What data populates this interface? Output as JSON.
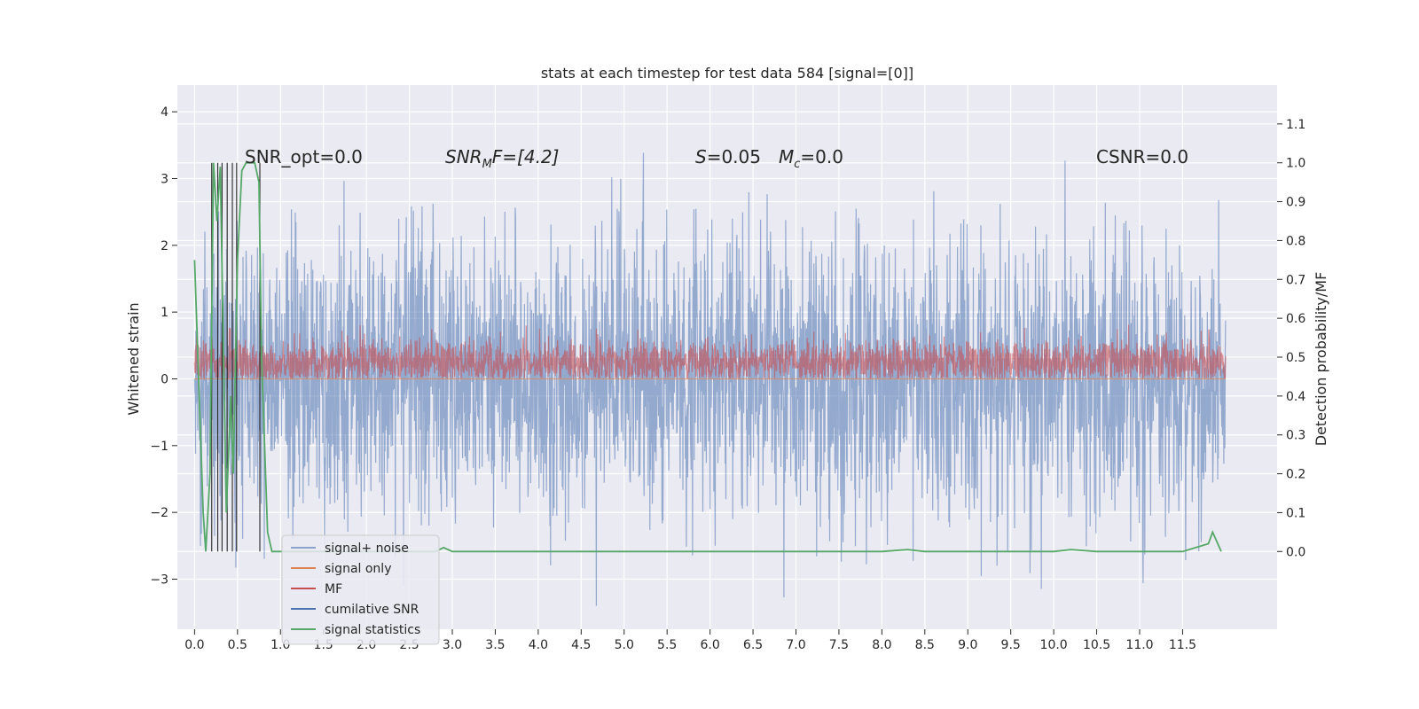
{
  "chart_data": {
    "type": "line",
    "title": "stats at each timestep for test data 584 [signal=[0]]",
    "xlabel": "",
    "ylabel": "Whitened strain",
    "y2label": "Detection probability/MF",
    "xlim": [
      -0.2,
      12.6
    ],
    "ylim": [
      -3.75,
      4.4
    ],
    "y2lim": [
      -0.2,
      1.2
    ],
    "xticks": [
      "0.0",
      "0.5",
      "1.0",
      "1.5",
      "2.0",
      "2.5",
      "3.0",
      "3.5",
      "4.0",
      "4.5",
      "5.0",
      "5.5",
      "6.0",
      "6.5",
      "7.0",
      "7.5",
      "8.0",
      "8.5",
      "9.0",
      "9.5",
      "10.0",
      "10.5",
      "11.0",
      "11.5"
    ],
    "yticks": [
      "4",
      "3",
      "2",
      "1",
      "0",
      "−1",
      "−2",
      "−3"
    ],
    "y2ticks": [
      "1.1",
      "1.0",
      "0.9",
      "0.8",
      "0.7",
      "0.6",
      "0.5",
      "0.4",
      "0.3",
      "0.2",
      "0.1",
      "0.0"
    ],
    "grid": true,
    "legend_position": "lower-left",
    "annotations": {
      "snr_opt": "SNR_opt=0.0",
      "snr_mf_main": "SNR",
      "snr_mf_sub": "M",
      "snr_mf_tail": "F=[4.2]",
      "s_main": "S",
      "s_tail": "=0.05",
      "mc_main": "M",
      "mc_sub": "c",
      "mc_tail": "=0.0",
      "csnr": "CSNR=0.0"
    },
    "series": [
      {
        "name": "signal+ noise",
        "color": "#4c72b0",
        "axis": "left",
        "amplitude_typical": 1.6,
        "x_range": [
          0,
          12
        ]
      },
      {
        "name": "signal only",
        "color": "#dd8452",
        "axis": "left",
        "values_constant": 0.0
      },
      {
        "name": "MF",
        "color": "#c44e52",
        "axis": "left",
        "band": [
          0.0,
          0.55
        ]
      },
      {
        "name": "cumilative SNR",
        "color": "#4c72b0"
      },
      {
        "name": "signal statistics",
        "color": "#55a868",
        "axis": "right",
        "x": [
          0.0,
          0.1,
          0.13,
          0.18,
          0.22,
          0.26,
          0.3,
          0.33,
          0.37,
          0.42,
          0.45,
          0.5,
          0.55,
          0.6,
          0.7,
          0.75,
          0.78,
          0.85,
          0.9,
          1.0,
          1.5,
          2.0,
          2.5,
          2.8,
          2.9,
          3.0,
          3.5,
          4.0,
          5.0,
          6.0,
          7.0,
          8.0,
          8.3,
          8.5,
          9.0,
          10.0,
          10.2,
          10.5,
          11.0,
          11.5,
          11.8,
          11.85,
          11.95
        ],
        "y": [
          0.75,
          0.1,
          0.0,
          0.2,
          1.0,
          0.85,
          0.99,
          0.6,
          0.1,
          0.4,
          0.2,
          0.75,
          0.98,
          1.0,
          1.0,
          0.95,
          0.5,
          0.05,
          0.0,
          0.0,
          0.0,
          0.0,
          0.0,
          0.0,
          0.01,
          0.0,
          0.0,
          0.0,
          0.0,
          0.0,
          0.0,
          0.0,
          0.005,
          0.0,
          0.0,
          0.0,
          0.005,
          0.0,
          0.0,
          0.0,
          0.02,
          0.05,
          0.0
        ]
      },
      {
        "name": "",
        "color": "#262626",
        "axis": "right",
        "type": "vlines",
        "x": [
          0.2,
          0.27,
          0.32,
          0.38,
          0.44,
          0.49,
          0.76
        ],
        "y": [
          1.0,
          1.0,
          1.0,
          1.0,
          1.0,
          1.0,
          1.0
        ]
      }
    ],
    "legend": [
      "signal+ noise",
      "signal only",
      "MF",
      "cumilative SNR",
      "signal statistics"
    ]
  }
}
